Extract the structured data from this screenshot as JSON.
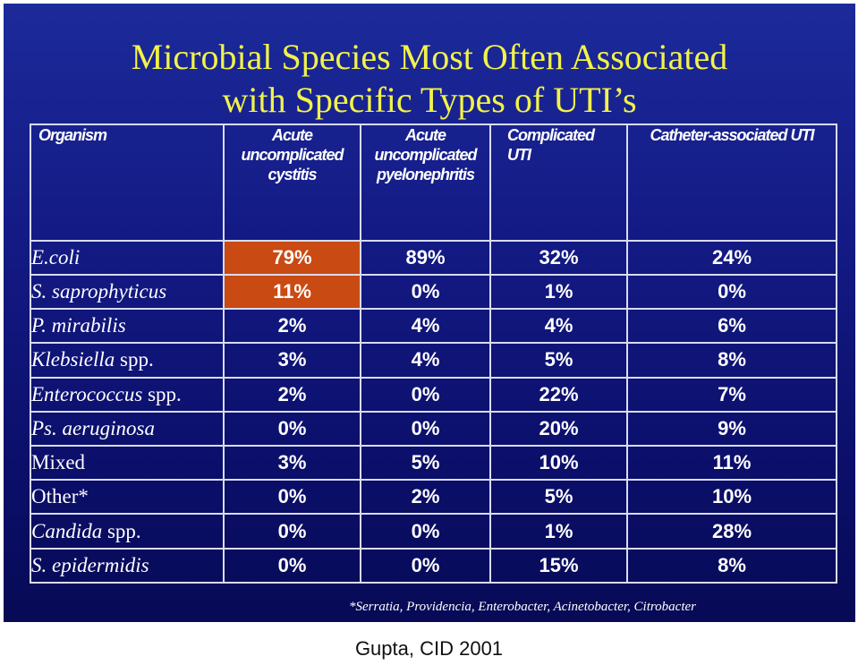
{
  "slide": {
    "title_line1": "Microbial Species Most Often Associated",
    "title_line2": "with Specific Types of UTI’s",
    "footnote": "*Serratia, Providencia, Enterobacter, Acinetobacter, Citrobacter",
    "caption": "Gupta, CID 2001",
    "colors": {
      "background": "#141b86",
      "title": "#f2f24a",
      "highlight": "#c94a12",
      "grid": "#d9dcf2"
    }
  },
  "table": {
    "headers": {
      "organism": "Organism",
      "cystitis_l1": "Acute",
      "cystitis_l2": "uncomplicated",
      "cystitis_l3": "cystitis",
      "pyelo_l1": "Acute",
      "pyelo_l2": "uncomplicated",
      "pyelo_l3": "pyelonephritis",
      "complicated_l1": "Complicated",
      "complicated_l2": "UTI",
      "catheter": "Catheter-associated UTI"
    },
    "rows": [
      {
        "name_italic": "E.coli",
        "name_plain": "",
        "values": [
          "79%",
          "89%",
          "32%",
          "24%"
        ]
      },
      {
        "name_italic": "S. saprophyticus",
        "name_plain": "",
        "values": [
          "11%",
          "0%",
          "1%",
          "0%"
        ]
      },
      {
        "name_italic": "P. mirabilis",
        "name_plain": "",
        "values": [
          "2%",
          "4%",
          "4%",
          "6%"
        ]
      },
      {
        "name_italic": "Klebsiella",
        "name_plain": " spp.",
        "values": [
          "3%",
          "4%",
          "5%",
          "8%"
        ]
      },
      {
        "name_italic": "Enterococcus",
        "name_plain": " spp.",
        "values": [
          "2%",
          "0%",
          "22%",
          "7%"
        ]
      },
      {
        "name_italic": "Ps. aeruginosa",
        "name_plain": "",
        "values": [
          "0%",
          "0%",
          "20%",
          "9%"
        ]
      },
      {
        "name_italic": "",
        "name_plain": "Mixed",
        "values": [
          "3%",
          "5%",
          "10%",
          "11%"
        ]
      },
      {
        "name_italic": "",
        "name_plain": "Other*",
        "values": [
          "0%",
          "2%",
          "5%",
          "10%"
        ]
      },
      {
        "name_italic": "Candida",
        "name_plain": " spp.",
        "values": [
          "0%",
          "0%",
          "1%",
          "28%"
        ]
      },
      {
        "name_italic": "S. epidermidis",
        "name_plain": "",
        "values": [
          "0%",
          "0%",
          "15%",
          "8%"
        ]
      }
    ]
  }
}
